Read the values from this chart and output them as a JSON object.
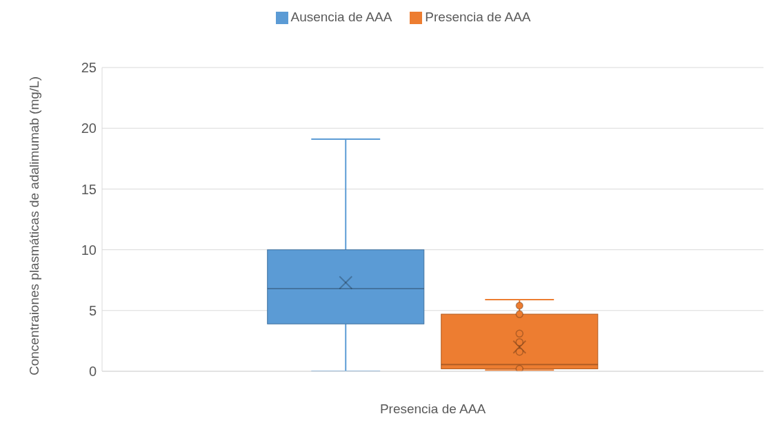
{
  "chart_data": {
    "type": "box",
    "categories": [
      "Presencia de AAA"
    ],
    "ylabel": "Concentraiones plasmáticas  de adalimumab (mg/L)",
    "ylim": [
      0,
      25
    ],
    "yticks": [
      0,
      5,
      10,
      15,
      20,
      25
    ],
    "grid": "y",
    "legend": "top",
    "series": [
      {
        "name": "Ausencia de AAA",
        "color": "#5b9bd5",
        "boxes": [
          {
            "low": 0,
            "q1": 3.9,
            "median": 6.8,
            "q3": 10,
            "high": 19.1,
            "mean": 7.3
          }
        ]
      },
      {
        "name": "Presencia de AAA",
        "color": "#ed7d31",
        "boxes": [
          {
            "low": 0.1,
            "q1": 0.2,
            "median": 0.55,
            "q3": 4.7,
            "high": 5.9,
            "mean": 2,
            "outliers": [
              5.4,
              4.7,
              3.1,
              2.4,
              1.6,
              0.2
            ]
          }
        ]
      }
    ]
  }
}
